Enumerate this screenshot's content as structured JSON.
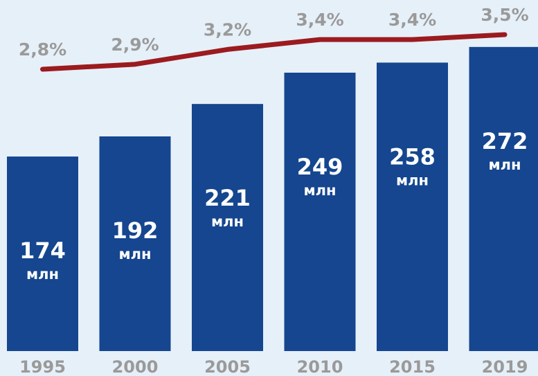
{
  "chart_data": {
    "type": "bar",
    "categories": [
      "1995",
      "2000",
      "2005",
      "2010",
      "2015",
      "2019"
    ],
    "values": [
      174,
      192,
      221,
      249,
      258,
      272
    ],
    "value_labels": [
      "174 млн",
      "192 млн",
      "221 млн",
      "249 млн",
      "258 млн",
      "272 млн"
    ],
    "color": "#15468f",
    "ylim": [
      0,
      314
    ],
    "series": [
      {
        "type": "line",
        "axis": "y2",
        "color": "#9b1b1f",
        "values": [
          2.8,
          2.9,
          3.2,
          3.4,
          3.4,
          3.5
        ],
        "value_labels": [
          "2,8%",
          "2,9%",
          "3,2%",
          "3,4%",
          "3,4%",
          "3,5%"
        ]
      }
    ],
    "y2lim": [
      -2.9,
      4.2
    ]
  }
}
